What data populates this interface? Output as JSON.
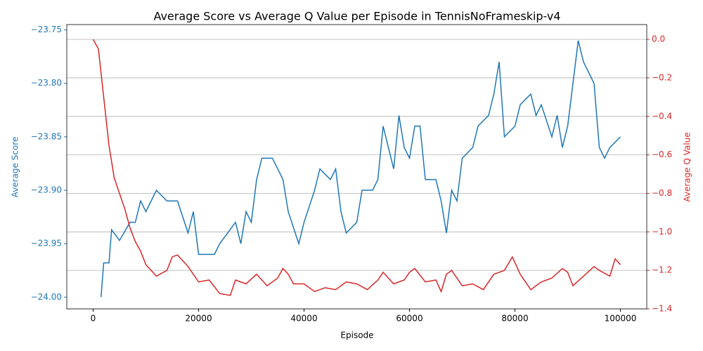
{
  "chart_data": {
    "type": "line",
    "title": "Average Score vs Average Q Value per Episode in TennisNoFrameskip-v4",
    "xlabel": "Episode",
    "ylabel": "Average Score",
    "y2label": "Average Q Value",
    "xlim": [
      -5000,
      105000
    ],
    "xticks": [
      0,
      20000,
      40000,
      60000,
      80000,
      100000
    ],
    "ylim": [
      -24.011,
      -23.745
    ],
    "yticks": [
      {
        "value": -24.0,
        "label": "−24.00"
      },
      {
        "value": -23.95,
        "label": "−23.95"
      },
      {
        "value": -23.9,
        "label": "−23.90"
      },
      {
        "value": -23.85,
        "label": "−23.85"
      },
      {
        "value": -23.8,
        "label": "−23.80"
      },
      {
        "value": -23.75,
        "label": "−23.75"
      }
    ],
    "y2lim": [
      -1.4,
      0.077
    ],
    "y2ticks": [
      {
        "value": -1.4,
        "label": "−1.4"
      },
      {
        "value": -1.2,
        "label": "−1.2"
      },
      {
        "value": -1.0,
        "label": "−1.0"
      },
      {
        "value": -0.8,
        "label": "−0.8"
      },
      {
        "value": -0.6,
        "label": "−0.6"
      },
      {
        "value": -0.4,
        "label": "−0.4"
      },
      {
        "value": -0.2,
        "label": "−0.2"
      },
      {
        "value": 0,
        "label": "0.0"
      }
    ],
    "grid": "y2",
    "ycolor": "#1f77b4",
    "y2color": "#d62728",
    "series": [
      {
        "color": "#1f77b4",
        "axis": "y",
        "x": [
          1500,
          2000,
          3000,
          3500,
          5000,
          7000,
          8000,
          9000,
          10000,
          12000,
          14000,
          16000,
          18000,
          19000,
          20000,
          23000,
          24000,
          27000,
          28000,
          29000,
          30000,
          31000,
          32000,
          34000,
          36000,
          37000,
          39000,
          40000,
          42000,
          43000,
          45000,
          46000,
          47000,
          48000,
          50000,
          51000,
          53000,
          54000,
          55000,
          57000,
          58000,
          59000,
          60000,
          61000,
          62000,
          63000,
          65000,
          66000,
          67000,
          68000,
          69000,
          70000,
          72000,
          73000,
          75000,
          76000,
          77000,
          78000,
          80000,
          81000,
          83000,
          84000,
          85000,
          87000,
          88000,
          89000,
          90000,
          91000,
          92000,
          93000,
          94000,
          95000,
          96000,
          97000,
          98000,
          100000
        ],
        "values": [
          -24.0,
          -23.968,
          -23.968,
          -23.937,
          -23.947,
          -23.93,
          -23.93,
          -23.91,
          -23.92,
          -23.9,
          -23.91,
          -23.91,
          -23.94,
          -23.92,
          -23.96,
          -23.96,
          -23.95,
          -23.93,
          -23.95,
          -23.92,
          -23.93,
          -23.89,
          -23.87,
          -23.87,
          -23.89,
          -23.92,
          -23.95,
          -23.93,
          -23.9,
          -23.88,
          -23.89,
          -23.88,
          -23.92,
          -23.94,
          -23.93,
          -23.9,
          -23.9,
          -23.89,
          -23.84,
          -23.88,
          -23.83,
          -23.86,
          -23.87,
          -23.84,
          -23.84,
          -23.89,
          -23.89,
          -23.91,
          -23.94,
          -23.9,
          -23.91,
          -23.87,
          -23.86,
          -23.84,
          -23.83,
          -23.81,
          -23.78,
          -23.85,
          -23.84,
          -23.82,
          -23.81,
          -23.83,
          -23.82,
          -23.85,
          -23.83,
          -23.86,
          -23.84,
          -23.8,
          -23.76,
          -23.78,
          -23.79,
          -23.8,
          -23.86,
          -23.87,
          -23.86,
          -23.85
        ]
      },
      {
        "color": "#d62728",
        "axis": "y2",
        "x": [
          0,
          1000,
          2000,
          3000,
          4000,
          5000,
          6000,
          7000,
          8000,
          9000,
          10000,
          12000,
          14000,
          15000,
          16000,
          18000,
          20000,
          22000,
          24000,
          26000,
          27000,
          29000,
          31000,
          33000,
          35000,
          36000,
          37000,
          38000,
          40000,
          42000,
          44000,
          46000,
          48000,
          50000,
          52000,
          54000,
          55000,
          57000,
          59000,
          60000,
          61000,
          63000,
          65000,
          66000,
          67000,
          68000,
          70000,
          72000,
          74000,
          76000,
          78000,
          79500,
          81000,
          83000,
          85000,
          87000,
          89000,
          90000,
          91000,
          93000,
          95000,
          96000,
          98000,
          99000,
          100000
        ],
        "values": [
          0,
          -0.05,
          -0.3,
          -0.55,
          -0.72,
          -0.8,
          -0.88,
          -0.98,
          -1.05,
          -1.1,
          -1.17,
          -1.23,
          -1.2,
          -1.13,
          -1.12,
          -1.18,
          -1.26,
          -1.25,
          -1.32,
          -1.33,
          -1.25,
          -1.27,
          -1.22,
          -1.28,
          -1.24,
          -1.19,
          -1.22,
          -1.27,
          -1.27,
          -1.31,
          -1.29,
          -1.3,
          -1.26,
          -1.27,
          -1.3,
          -1.25,
          -1.21,
          -1.27,
          -1.25,
          -1.21,
          -1.19,
          -1.26,
          -1.25,
          -1.31,
          -1.22,
          -1.2,
          -1.28,
          -1.27,
          -1.3,
          -1.22,
          -1.2,
          -1.13,
          -1.22,
          -1.3,
          -1.26,
          -1.24,
          -1.19,
          -1.21,
          -1.28,
          -1.23,
          -1.18,
          -1.2,
          -1.23,
          -1.14,
          -1.17
        ]
      }
    ]
  }
}
